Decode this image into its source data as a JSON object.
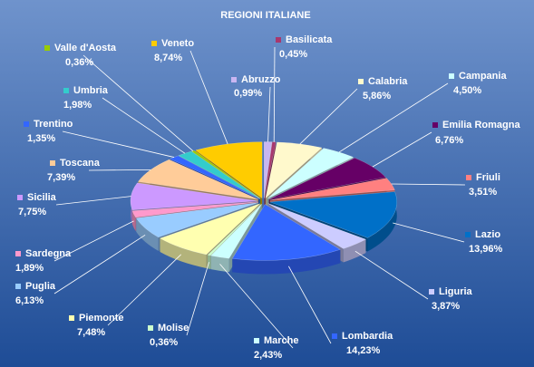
{
  "chart_data": {
    "type": "pie",
    "title": "REGIONI ITALIANE",
    "categories": [
      "Abruzzo",
      "Basilicata",
      "Calabria",
      "Campania",
      "Emilia Romagna",
      "Friuli",
      "Lazio",
      "Liguria",
      "Lombardia",
      "Marche",
      "Molise",
      "Piemonte",
      "Puglia",
      "Sardegna",
      "Sicilia",
      "Toscana",
      "Trentino",
      "Umbria",
      "Valle d'Aosta",
      "Veneto"
    ],
    "values": [
      0.99,
      0.45,
      5.86,
      4.5,
      6.76,
      3.51,
      13.96,
      3.87,
      14.23,
      2.43,
      0.36,
      7.48,
      6.13,
      1.89,
      7.75,
      7.39,
      1.35,
      1.98,
      0.36,
      8.74
    ],
    "value_labels": [
      "0,99%",
      "0,45%",
      "5,86%",
      "4,50%",
      "6,76%",
      "3,51%",
      "13,96%",
      "3,87%",
      "14,23%",
      "2,43%",
      "0,36%",
      "7,48%",
      "6,13%",
      "1,89%",
      "7,75%",
      "7,39%",
      "1,35%",
      "1,98%",
      "0,36%",
      "8,74%"
    ],
    "colors": [
      "#c9b6f2",
      "#a8386e",
      "#fff9cc",
      "#ccffff",
      "#660066",
      "#ff8080",
      "#0070c8",
      "#ccccff",
      "#3366ff",
      "#ccffff",
      "#ccffcc",
      "#ffffb0",
      "#99ccff",
      "#ff99cc",
      "#cc99ff",
      "#ffcc99",
      "#3366ff",
      "#33cccc",
      "#99cc00",
      "#ffcc00"
    ]
  }
}
